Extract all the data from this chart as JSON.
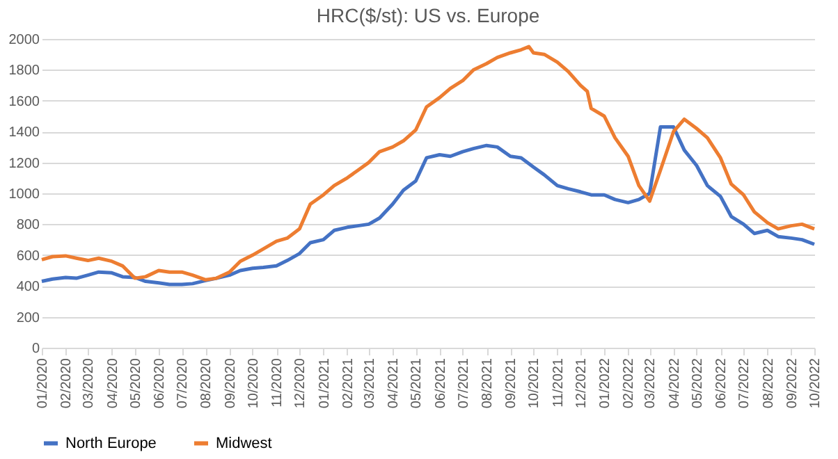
{
  "chart_data": {
    "type": "line",
    "title": "HRC($/st): US vs. Europe",
    "xlim": [
      "2020-01",
      "2022-10"
    ],
    "xticks": [
      {
        "value": "2020-01",
        "label": "01/2020"
      },
      {
        "value": "2020-02",
        "label": "02/2020"
      },
      {
        "value": "2020-03",
        "label": "03/2020"
      },
      {
        "value": "2020-04",
        "label": "04/2020"
      },
      {
        "value": "2020-05",
        "label": "05/2020"
      },
      {
        "value": "2020-06",
        "label": "06/2020"
      },
      {
        "value": "2020-07",
        "label": "07/2020"
      },
      {
        "value": "2020-08",
        "label": "08/2020"
      },
      {
        "value": "2020-09",
        "label": "09/2020"
      },
      {
        "value": "2020-10",
        "label": "10/2020"
      },
      {
        "value": "2020-11",
        "label": "11/2020"
      },
      {
        "value": "2020-12",
        "label": "12/2020"
      },
      {
        "value": "2021-01",
        "label": "01/2021"
      },
      {
        "value": "2021-02",
        "label": "02/2021"
      },
      {
        "value": "2021-03",
        "label": "03/2021"
      },
      {
        "value": "2021-04",
        "label": "04/2021"
      },
      {
        "value": "2021-05",
        "label": "05/2021"
      },
      {
        "value": "2021-06",
        "label": "06/2021"
      },
      {
        "value": "2021-07",
        "label": "07/2021"
      },
      {
        "value": "2021-08",
        "label": "08/2021"
      },
      {
        "value": "2021-09",
        "label": "09/2021"
      },
      {
        "value": "2021-10",
        "label": "10/2021"
      },
      {
        "value": "2021-11",
        "label": "11/2021"
      },
      {
        "value": "2021-12",
        "label": "12/2021"
      },
      {
        "value": "2022-01",
        "label": "01/2022"
      },
      {
        "value": "2022-02",
        "label": "02/2022"
      },
      {
        "value": "2022-03",
        "label": "03/2022"
      },
      {
        "value": "2022-04",
        "label": "04/2022"
      },
      {
        "value": "2022-05",
        "label": "05/2022"
      },
      {
        "value": "2022-06",
        "label": "06/2022"
      },
      {
        "value": "2022-07",
        "label": "07/2022"
      },
      {
        "value": "2022-08",
        "label": "08/2022"
      },
      {
        "value": "2022-09",
        "label": "09/2022"
      },
      {
        "value": "2022-10",
        "label": "10/2022"
      }
    ],
    "ylim": [
      0,
      2000
    ],
    "yticks": [
      0,
      200,
      400,
      600,
      800,
      1000,
      1200,
      1400,
      1600,
      1800,
      2000
    ],
    "grid": "y",
    "legend": "bottom",
    "line_style": "solid",
    "marker": "none",
    "series": [
      {
        "name": "North Europe",
        "color": "#4472c4",
        "x": [
          "2020-01-01",
          "2020-01-15",
          "2020-02-01",
          "2020-02-15",
          "2020-03-01",
          "2020-03-15",
          "2020-04-01",
          "2020-04-15",
          "2020-05-01",
          "2020-05-15",
          "2020-06-01",
          "2020-06-15",
          "2020-07-01",
          "2020-07-15",
          "2020-08-01",
          "2020-08-15",
          "2020-09-01",
          "2020-09-15",
          "2020-10-01",
          "2020-10-15",
          "2020-11-01",
          "2020-11-15",
          "2020-12-01",
          "2020-12-15",
          "2021-01-01",
          "2021-01-15",
          "2021-02-01",
          "2021-02-15",
          "2021-03-01",
          "2021-03-15",
          "2021-04-01",
          "2021-04-15",
          "2021-05-01",
          "2021-05-15",
          "2021-06-01",
          "2021-06-15",
          "2021-07-01",
          "2021-07-15",
          "2021-08-01",
          "2021-08-15",
          "2021-09-01",
          "2021-09-15",
          "2021-10-01",
          "2021-10-15",
          "2021-11-01",
          "2021-11-15",
          "2021-12-01",
          "2021-12-15",
          "2022-01-01",
          "2022-01-15",
          "2022-02-01",
          "2022-02-15",
          "2022-03-01",
          "2022-03-15",
          "2022-04-01",
          "2022-04-15",
          "2022-05-01",
          "2022-05-15",
          "2022-06-01",
          "2022-06-15",
          "2022-07-01",
          "2022-07-15",
          "2022-08-01",
          "2022-08-15",
          "2022-09-01",
          "2022-09-15",
          "2022-10-01"
        ],
        "values": [
          430,
          445,
          455,
          450,
          470,
          490,
          485,
          460,
          455,
          430,
          420,
          410,
          410,
          415,
          435,
          450,
          470,
          500,
          515,
          520,
          530,
          565,
          610,
          680,
          700,
          760,
          780,
          790,
          800,
          840,
          930,
          1020,
          1080,
          1230,
          1250,
          1240,
          1270,
          1290,
          1310,
          1300,
          1240,
          1230,
          1170,
          1120,
          1050,
          1030,
          1010,
          990,
          990,
          960,
          940,
          960,
          1000,
          1430,
          1430,
          1280,
          1180,
          1050,
          980,
          850,
          800,
          740,
          760,
          720,
          710,
          700,
          670
        ]
      },
      {
        "name": "Midwest",
        "color": "#ed7d31",
        "x": [
          "2020-01-01",
          "2020-01-15",
          "2020-02-01",
          "2020-02-15",
          "2020-03-01",
          "2020-03-15",
          "2020-04-01",
          "2020-04-15",
          "2020-05-01",
          "2020-05-15",
          "2020-06-01",
          "2020-06-15",
          "2020-07-01",
          "2020-07-15",
          "2020-08-01",
          "2020-08-15",
          "2020-09-01",
          "2020-09-15",
          "2020-10-01",
          "2020-10-15",
          "2020-11-01",
          "2020-11-15",
          "2020-12-01",
          "2020-12-15",
          "2021-01-01",
          "2021-01-15",
          "2021-02-01",
          "2021-02-15",
          "2021-03-01",
          "2021-03-15",
          "2021-04-01",
          "2021-04-15",
          "2021-05-01",
          "2021-05-15",
          "2021-06-01",
          "2021-06-15",
          "2021-07-01",
          "2021-07-15",
          "2021-08-01",
          "2021-08-15",
          "2021-09-01",
          "2021-09-15",
          "2021-09-25",
          "2021-10-01",
          "2021-10-15",
          "2021-11-01",
          "2021-11-15",
          "2021-12-01",
          "2021-12-10",
          "2021-12-15",
          "2022-01-01",
          "2022-01-15",
          "2022-02-01",
          "2022-02-15",
          "2022-03-01",
          "2022-03-15",
          "2022-04-01",
          "2022-04-15",
          "2022-05-01",
          "2022-05-15",
          "2022-06-01",
          "2022-06-15",
          "2022-07-01",
          "2022-07-15",
          "2022-08-01",
          "2022-08-15",
          "2022-09-01",
          "2022-09-15",
          "2022-10-01"
        ],
        "values": [
          570,
          590,
          595,
          580,
          565,
          580,
          560,
          530,
          450,
          460,
          500,
          490,
          490,
          470,
          440,
          450,
          490,
          560,
          600,
          640,
          690,
          710,
          770,
          930,
          990,
          1050,
          1100,
          1150,
          1200,
          1270,
          1300,
          1340,
          1410,
          1560,
          1620,
          1680,
          1730,
          1800,
          1840,
          1880,
          1910,
          1930,
          1950,
          1910,
          1900,
          1850,
          1790,
          1700,
          1660,
          1550,
          1500,
          1360,
          1240,
          1050,
          950,
          1150,
          1400,
          1480,
          1420,
          1360,
          1230,
          1060,
          990,
          880,
          810,
          770,
          790,
          800,
          770
        ]
      }
    ]
  }
}
